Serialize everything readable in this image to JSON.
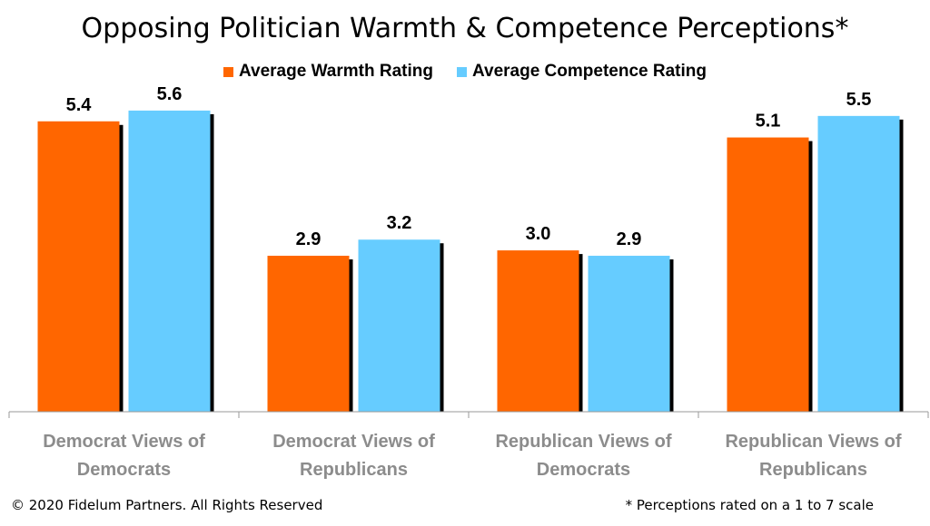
{
  "chart_data": {
    "type": "bar",
    "title": "Opposing Politician Warmth & Competence Perceptions*",
    "categories": [
      [
        "Democrat Views of",
        "Democrats"
      ],
      [
        "Democrat Views of",
        "Republicans"
      ],
      [
        "Republican Views of",
        "Democrats"
      ],
      [
        "Republican Views of",
        "Republicans"
      ]
    ],
    "series": [
      {
        "name": "Average Warmth Rating",
        "values": [
          5.4,
          2.9,
          3.0,
          5.1
        ],
        "value_labels": [
          "5.4",
          "2.9",
          "3.0",
          "5.1"
        ],
        "color": "#ff6600"
      },
      {
        "name": "Average Competence Rating",
        "values": [
          5.6,
          3.2,
          2.9,
          5.5
        ],
        "value_labels": [
          "5.6",
          "3.2",
          "2.9",
          "5.5"
        ],
        "color": "#66ccff"
      }
    ],
    "ylim": [
      0,
      7
    ],
    "grid": false,
    "legend_position": "top-center"
  },
  "footer": {
    "copyright": "© 2020 Fidelum Partners. All Rights Reserved",
    "note": "* Perceptions rated on a 1 to 7 scale"
  }
}
